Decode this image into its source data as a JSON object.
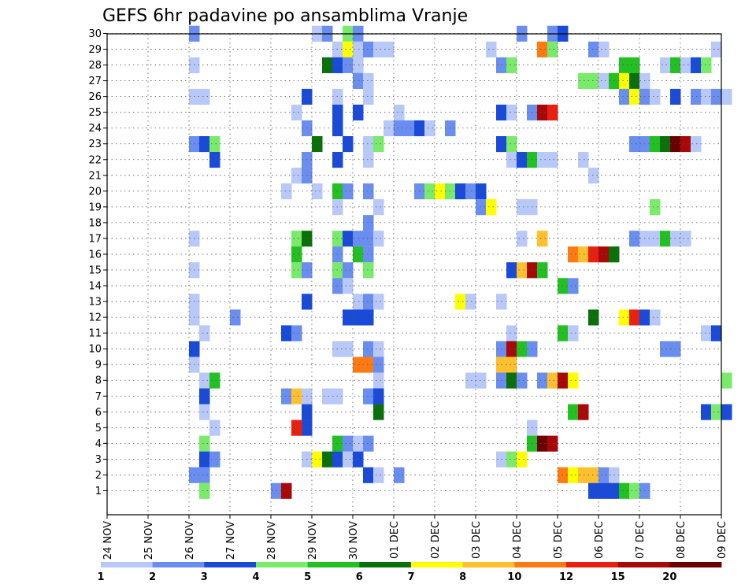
{
  "chart_data": {
    "type": "heatmap",
    "title": "GEFS 6hr padavine po ansamblima Vranje",
    "x_ticks": [
      "24 NOV",
      "25 NOV",
      "26 NOV",
      "27 NOV",
      "28 NOV",
      "29 NOV",
      "30 NOV",
      "01 DEC",
      "02 DEC",
      "03 DEC",
      "04 DEC",
      "05 DEC",
      "06 DEC",
      "07 DEC",
      "08 DEC",
      "09 DEC"
    ],
    "y_ticks": [
      1,
      2,
      3,
      4,
      5,
      6,
      7,
      8,
      9,
      10,
      11,
      12,
      13,
      14,
      15,
      16,
      17,
      18,
      19,
      20,
      21,
      22,
      23,
      24,
      25,
      26,
      27,
      28,
      29,
      30
    ],
    "grid": true,
    "colorbar": {
      "labels": [
        "1",
        "2",
        "3",
        "4",
        "5",
        "6",
        "7",
        "8",
        "10",
        "12",
        "15",
        "20"
      ],
      "colors": [
        "#b8c8f8",
        "#6a8ef0",
        "#1a4ad8",
        "#7aea6a",
        "#22c022",
        "#0a700a",
        "#ffff00",
        "#ffc030",
        "#ff7a10",
        "#e82010",
        "#a80808",
        "#6a0000"
      ]
    },
    "cells": [
      [
        2,
        30,
        1
      ],
      [
        5,
        30,
        0
      ],
      [
        5.25,
        30,
        1
      ],
      [
        5.75,
        30,
        3
      ],
      [
        6,
        30,
        1
      ],
      [
        10,
        30,
        1
      ],
      [
        10.75,
        30,
        1
      ],
      [
        11,
        30,
        2
      ],
      [
        5.5,
        29,
        0
      ],
      [
        5.75,
        29,
        6
      ],
      [
        6,
        29,
        0
      ],
      [
        6.25,
        29,
        1
      ],
      [
        6.5,
        29,
        0
      ],
      [
        6.75,
        29,
        0
      ],
      [
        9.25,
        29,
        0
      ],
      [
        10.5,
        29,
        8
      ],
      [
        10.75,
        29,
        3
      ],
      [
        11.75,
        29,
        1
      ],
      [
        12,
        29,
        0
      ],
      [
        14.75,
        29,
        0
      ],
      [
        2,
        28,
        0
      ],
      [
        5.25,
        28,
        5
      ],
      [
        5.5,
        28,
        2
      ],
      [
        5.75,
        28,
        1
      ],
      [
        6,
        28,
        0
      ],
      [
        9.5,
        28,
        1
      ],
      [
        9.75,
        28,
        3
      ],
      [
        12.5,
        28,
        4
      ],
      [
        12.75,
        28,
        4
      ],
      [
        13.5,
        28,
        0
      ],
      [
        13.75,
        28,
        4
      ],
      [
        14,
        28,
        0
      ],
      [
        14.25,
        28,
        2
      ],
      [
        14.5,
        28,
        3
      ],
      [
        6,
        27,
        1
      ],
      [
        6.25,
        27,
        0
      ],
      [
        11.5,
        27,
        3
      ],
      [
        11.75,
        27,
        3
      ],
      [
        12,
        27,
        0
      ],
      [
        12.25,
        27,
        4
      ],
      [
        12.5,
        27,
        6
      ],
      [
        12.75,
        27,
        5
      ],
      [
        13,
        27,
        0
      ],
      [
        2,
        26,
        0
      ],
      [
        2.25,
        26,
        0
      ],
      [
        4.75,
        26,
        2
      ],
      [
        5.5,
        26,
        0
      ],
      [
        6.25,
        26,
        0
      ],
      [
        12.5,
        26,
        1
      ],
      [
        12.75,
        26,
        6
      ],
      [
        13,
        26,
        1
      ],
      [
        13.25,
        26,
        0
      ],
      [
        13.75,
        26,
        2
      ],
      [
        14.25,
        26,
        1
      ],
      [
        14.5,
        26,
        0
      ],
      [
        14.75,
        26,
        1
      ],
      [
        15,
        26,
        0
      ],
      [
        4.5,
        25,
        0
      ],
      [
        5.5,
        25,
        2
      ],
      [
        6,
        25,
        2
      ],
      [
        7,
        25,
        0
      ],
      [
        9.5,
        25,
        2
      ],
      [
        9.75,
        25,
        0
      ],
      [
        10.25,
        25,
        1
      ],
      [
        10.5,
        25,
        10
      ],
      [
        10.75,
        25,
        9
      ],
      [
        4.75,
        24,
        1
      ],
      [
        5.5,
        24,
        2
      ],
      [
        6.75,
        24,
        0
      ],
      [
        7,
        24,
        1
      ],
      [
        7.25,
        24,
        1
      ],
      [
        7.5,
        24,
        2
      ],
      [
        7.75,
        24,
        0
      ],
      [
        8.25,
        24,
        1
      ],
      [
        2,
        23,
        1
      ],
      [
        2.25,
        23,
        2
      ],
      [
        2.5,
        23,
        3
      ],
      [
        5,
        23,
        5
      ],
      [
        5.75,
        23,
        2
      ],
      [
        6.25,
        23,
        0
      ],
      [
        6.5,
        23,
        3
      ],
      [
        9.5,
        23,
        2
      ],
      [
        9.75,
        23,
        3
      ],
      [
        12.75,
        23,
        1
      ],
      [
        13,
        23,
        1
      ],
      [
        13.25,
        23,
        4
      ],
      [
        13.5,
        23,
        5
      ],
      [
        13.75,
        23,
        11
      ],
      [
        14,
        23,
        10
      ],
      [
        14.25,
        23,
        0
      ],
      [
        2.5,
        22,
        2
      ],
      [
        4.75,
        22,
        1
      ],
      [
        5.5,
        22,
        2
      ],
      [
        6.25,
        22,
        0
      ],
      [
        9.75,
        22,
        0
      ],
      [
        10,
        22,
        2
      ],
      [
        10.25,
        22,
        4
      ],
      [
        10.5,
        22,
        0
      ],
      [
        10.75,
        22,
        0
      ],
      [
        11.5,
        22,
        0
      ],
      [
        4.5,
        21,
        0
      ],
      [
        4.75,
        21,
        1
      ],
      [
        11.75,
        21,
        0
      ],
      [
        4.25,
        20,
        0
      ],
      [
        5,
        20,
        0
      ],
      [
        5.5,
        20,
        4
      ],
      [
        5.75,
        20,
        1
      ],
      [
        6.25,
        20,
        1
      ],
      [
        7.5,
        20,
        1
      ],
      [
        7.75,
        20,
        3
      ],
      [
        8,
        20,
        6
      ],
      [
        8.25,
        20,
        3
      ],
      [
        8.5,
        20,
        2
      ],
      [
        8.75,
        20,
        1
      ],
      [
        9,
        20,
        2
      ],
      [
        5.5,
        19,
        0
      ],
      [
        6.5,
        19,
        0
      ],
      [
        9,
        19,
        1
      ],
      [
        9.25,
        19,
        6
      ],
      [
        10,
        19,
        0
      ],
      [
        10.25,
        19,
        0
      ],
      [
        13.25,
        19,
        3
      ],
      [
        6.25,
        18,
        1
      ],
      [
        2,
        17,
        0
      ],
      [
        4.5,
        17,
        3
      ],
      [
        4.75,
        17,
        5
      ],
      [
        5.5,
        17,
        3
      ],
      [
        5.75,
        17,
        2
      ],
      [
        6,
        17,
        1
      ],
      [
        6.25,
        17,
        1
      ],
      [
        6.5,
        17,
        0
      ],
      [
        10,
        17,
        0
      ],
      [
        10.5,
        17,
        7
      ],
      [
        12.75,
        17,
        1
      ],
      [
        13,
        17,
        0
      ],
      [
        13.25,
        17,
        0
      ],
      [
        13.5,
        17,
        4
      ],
      [
        13.75,
        17,
        0
      ],
      [
        14,
        17,
        0
      ],
      [
        4.5,
        16,
        4
      ],
      [
        5.5,
        16,
        1
      ],
      [
        6,
        16,
        4
      ],
      [
        6.25,
        16,
        1
      ],
      [
        11.25,
        16,
        8
      ],
      [
        11.5,
        16,
        7
      ],
      [
        11.75,
        16,
        9
      ],
      [
        12,
        16,
        10
      ],
      [
        12.25,
        16,
        5
      ],
      [
        2,
        15,
        0
      ],
      [
        4.5,
        15,
        3
      ],
      [
        4.75,
        15,
        1
      ],
      [
        5.5,
        15,
        3
      ],
      [
        5.75,
        15,
        1
      ],
      [
        6.25,
        15,
        3
      ],
      [
        9.75,
        15,
        2
      ],
      [
        10,
        15,
        7
      ],
      [
        10.25,
        15,
        10
      ],
      [
        10.5,
        15,
        4
      ],
      [
        5.5,
        14,
        1
      ],
      [
        5.75,
        14,
        0
      ],
      [
        11,
        14,
        4
      ],
      [
        11.25,
        14,
        1
      ],
      [
        2,
        13,
        0
      ],
      [
        4.75,
        13,
        2
      ],
      [
        6,
        13,
        0
      ],
      [
        6.25,
        13,
        1
      ],
      [
        6.5,
        13,
        0
      ],
      [
        8.5,
        13,
        6
      ],
      [
        8.75,
        13,
        0
      ],
      [
        9.5,
        13,
        0
      ],
      [
        2,
        12,
        0
      ],
      [
        3,
        12,
        1
      ],
      [
        5.75,
        12,
        2
      ],
      [
        6,
        12,
        2
      ],
      [
        6.25,
        12,
        2
      ],
      [
        11.75,
        12,
        5
      ],
      [
        12.5,
        12,
        6
      ],
      [
        12.75,
        12,
        9
      ],
      [
        13,
        12,
        2
      ],
      [
        13.25,
        12,
        0
      ],
      [
        2.25,
        11,
        0
      ],
      [
        4.25,
        11,
        2
      ],
      [
        4.5,
        11,
        1
      ],
      [
        9.75,
        11,
        0
      ],
      [
        11,
        11,
        4
      ],
      [
        11.25,
        11,
        0
      ],
      [
        14.5,
        11,
        0
      ],
      [
        14.75,
        11,
        2
      ],
      [
        2,
        10,
        2
      ],
      [
        5.5,
        10,
        0
      ],
      [
        5.75,
        10,
        0
      ],
      [
        6.25,
        10,
        1
      ],
      [
        6.5,
        10,
        0
      ],
      [
        9.5,
        10,
        1
      ],
      [
        9.75,
        10,
        10
      ],
      [
        10,
        10,
        4
      ],
      [
        10.25,
        10,
        1
      ],
      [
        13.5,
        10,
        1
      ],
      [
        13.75,
        10,
        1
      ],
      [
        2,
        9,
        0
      ],
      [
        6,
        9,
        8
      ],
      [
        6.25,
        9,
        8
      ],
      [
        6.5,
        9,
        1
      ],
      [
        9.5,
        9,
        7
      ],
      [
        9.75,
        9,
        7
      ],
      [
        2.25,
        8,
        0
      ],
      [
        2.5,
        8,
        4
      ],
      [
        6.5,
        8,
        0
      ],
      [
        8.75,
        8,
        0
      ],
      [
        9,
        8,
        0
      ],
      [
        9.5,
        8,
        1
      ],
      [
        9.75,
        8,
        5
      ],
      [
        10,
        8,
        1
      ],
      [
        10.5,
        8,
        1
      ],
      [
        10.75,
        8,
        7
      ],
      [
        11,
        8,
        10
      ],
      [
        11.25,
        8,
        6
      ],
      [
        15,
        8,
        3
      ],
      [
        2.25,
        7,
        2
      ],
      [
        4.25,
        7,
        1
      ],
      [
        4.5,
        7,
        7
      ],
      [
        4.75,
        7,
        0
      ],
      [
        5.25,
        7,
        0
      ],
      [
        5.5,
        7,
        0
      ],
      [
        6.25,
        7,
        1
      ],
      [
        6.5,
        7,
        2
      ],
      [
        2.25,
        6,
        0
      ],
      [
        4.75,
        6,
        2
      ],
      [
        6.5,
        6,
        5
      ],
      [
        11.25,
        6,
        4
      ],
      [
        11.5,
        6,
        10
      ],
      [
        14.5,
        6,
        2
      ],
      [
        14.75,
        6,
        3
      ],
      [
        15,
        6,
        2
      ],
      [
        2.5,
        5,
        0
      ],
      [
        4.75,
        5,
        2
      ],
      [
        4.5,
        5,
        9
      ],
      [
        10.25,
        5,
        0
      ],
      [
        2.25,
        4,
        3
      ],
      [
        5.5,
        4,
        4
      ],
      [
        5.75,
        4,
        1
      ],
      [
        6,
        4,
        0
      ],
      [
        6.25,
        4,
        1
      ],
      [
        10.25,
        4,
        4
      ],
      [
        10.5,
        4,
        11
      ],
      [
        10.75,
        4,
        10
      ],
      [
        2.25,
        3,
        2
      ],
      [
        2.5,
        3,
        1
      ],
      [
        4.75,
        3,
        0
      ],
      [
        5,
        3,
        6
      ],
      [
        5.25,
        3,
        5
      ],
      [
        5.5,
        3,
        2
      ],
      [
        5.75,
        3,
        0
      ],
      [
        6,
        3,
        2
      ],
      [
        9.5,
        3,
        0
      ],
      [
        9.75,
        3,
        3
      ],
      [
        10,
        3,
        6
      ],
      [
        2,
        2,
        1
      ],
      [
        2.25,
        2,
        1
      ],
      [
        6.25,
        2,
        2
      ],
      [
        6.5,
        2,
        0
      ],
      [
        7,
        2,
        1
      ],
      [
        11,
        2,
        8
      ],
      [
        11.25,
        2,
        6
      ],
      [
        11.5,
        2,
        7
      ],
      [
        11.75,
        2,
        7
      ],
      [
        12,
        2,
        1
      ],
      [
        12.25,
        2,
        0
      ],
      [
        2.25,
        1,
        3
      ],
      [
        4,
        1,
        1
      ],
      [
        4.25,
        1,
        10
      ],
      [
        11.75,
        1,
        2
      ],
      [
        12,
        1,
        2
      ],
      [
        12.25,
        1,
        2
      ],
      [
        12.5,
        1,
        4
      ],
      [
        12.75,
        1,
        3
      ],
      [
        13,
        1,
        1
      ]
    ]
  }
}
